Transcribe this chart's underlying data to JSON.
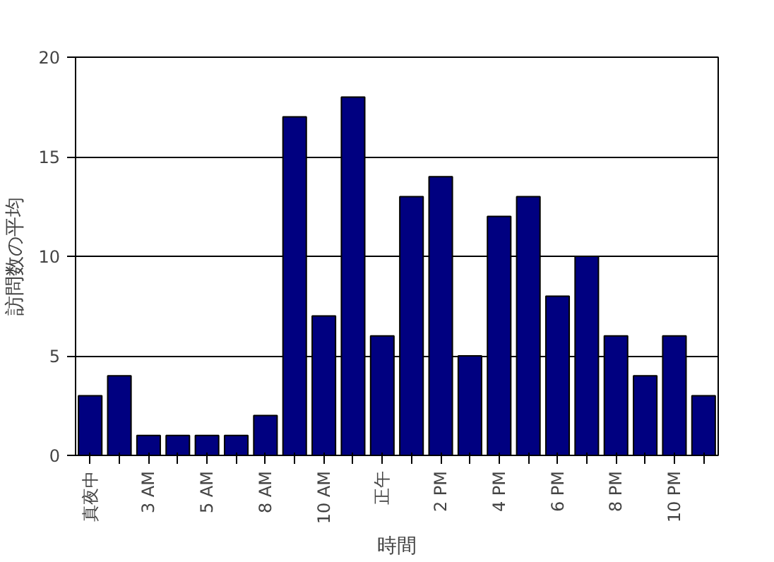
{
  "chart_data": {
    "type": "bar",
    "xlabel": "時間",
    "ylabel": "訪問数の平均",
    "categories": [
      "真夜中",
      null,
      "3 AM",
      null,
      "5 AM",
      null,
      "8 AM",
      null,
      "10 AM",
      null,
      "正午",
      null,
      "2 PM",
      null,
      "4 PM",
      null,
      "6 PM",
      null,
      "8 PM",
      null,
      "10 PM",
      null
    ],
    "values": [
      3,
      4,
      1,
      1,
      1,
      1,
      2,
      17,
      7,
      18,
      6,
      13,
      14,
      5,
      12,
      13,
      8,
      10,
      6,
      4,
      6,
      3
    ],
    "color": "#000080",
    "ylim": [
      0,
      20
    ],
    "yticks": [
      0,
      5,
      10,
      15,
      20
    ],
    "grid": "y"
  }
}
